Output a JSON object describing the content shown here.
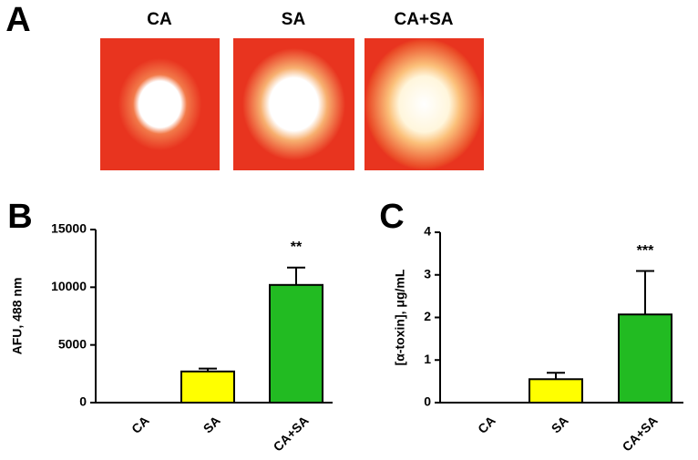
{
  "panel_a": {
    "label": "A",
    "titles": [
      "CA",
      "SA",
      "CA+SA"
    ]
  },
  "chart_data": [
    {
      "type": "bar",
      "label": "B",
      "y_label": "AFU, 488 nm",
      "categories": [
        "CA",
        "SA",
        "CA+SA"
      ],
      "values": [
        0,
        2700,
        10200
      ],
      "errors": [
        0,
        250,
        1500
      ],
      "colors": [
        null,
        "#ffff00",
        "#22bb22"
      ],
      "annotations": [
        null,
        null,
        "**"
      ],
      "ylim": [
        0,
        15000
      ],
      "yticks": [
        0,
        5000,
        10000,
        15000
      ]
    },
    {
      "type": "bar",
      "label": "C",
      "y_label": "[α-toxin], μg/mL",
      "categories": [
        "CA",
        "SA",
        "CA+SA"
      ],
      "values": [
        0,
        0.55,
        2.07
      ],
      "errors": [
        0,
        0.15,
        1.02
      ],
      "colors": [
        null,
        "#ffff00",
        "#22bb22"
      ],
      "annotations": [
        null,
        null,
        "***"
      ],
      "ylim": [
        0,
        4
      ],
      "yticks": [
        0,
        1,
        2,
        3,
        4
      ]
    }
  ]
}
